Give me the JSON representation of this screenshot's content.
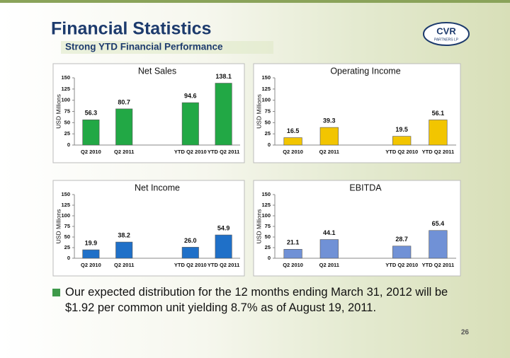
{
  "title": "Financial Statistics",
  "subtitle": "Strong YTD Financial Performance",
  "logo": {
    "name": "CVR",
    "sub": "PARTNERS LP"
  },
  "bullet": "Our expected distribution for the 12 months ending March 31, 2012 will be $1.92 per common unit yielding 8.7% as of August 19, 2011.",
  "page_number": "26",
  "chart_data": [
    {
      "type": "bar",
      "title": "Net Sales",
      "y_label": "USD Millions",
      "color": "#22a845",
      "categories": [
        "Q2 2010",
        "Q2 2011",
        null,
        "YTD Q2 2010",
        "YTD Q2 2011"
      ],
      "values": [
        56.3,
        80.7,
        null,
        94.6,
        138.1
      ],
      "ylim": [
        0,
        150
      ],
      "yticks": [
        0,
        25,
        50,
        75,
        100,
        125,
        150
      ]
    },
    {
      "type": "bar",
      "title": "Operating Income",
      "y_label": "USD Millions",
      "color": "#f2c500",
      "categories": [
        "Q2 2010",
        "Q2 2011",
        null,
        "YTD Q2 2010",
        "YTD Q2 2011"
      ],
      "values": [
        16.5,
        39.3,
        null,
        19.5,
        56.1
      ],
      "ylim": [
        0,
        150
      ],
      "yticks": [
        0,
        25,
        50,
        75,
        100,
        125,
        150
      ]
    },
    {
      "type": "bar",
      "title": "Net Income",
      "y_label": "USD Millions",
      "color": "#1f70c8",
      "categories": [
        "Q2 2010",
        "Q2 2011",
        null,
        "YTD Q2 2010",
        "YTD Q2 2011"
      ],
      "values": [
        19.9,
        38.2,
        null,
        26.0,
        54.9
      ],
      "value_labels": [
        "19.9",
        "38.2",
        null,
        "26.0",
        "54.9"
      ],
      "ylim": [
        0,
        150
      ],
      "yticks": [
        0,
        25,
        50,
        75,
        100,
        125,
        150
      ]
    },
    {
      "type": "bar",
      "title": "EBITDA",
      "y_label": "USD Millions",
      "color": "#7091d6",
      "categories": [
        "Q2 2010",
        "Q2 2011",
        null,
        "YTD Q2 2010",
        "YTD Q2 2011"
      ],
      "values": [
        21.1,
        44.1,
        null,
        28.7,
        65.4
      ],
      "ylim": [
        0,
        150
      ],
      "yticks": [
        0,
        25,
        50,
        75,
        100,
        125,
        150
      ]
    }
  ]
}
